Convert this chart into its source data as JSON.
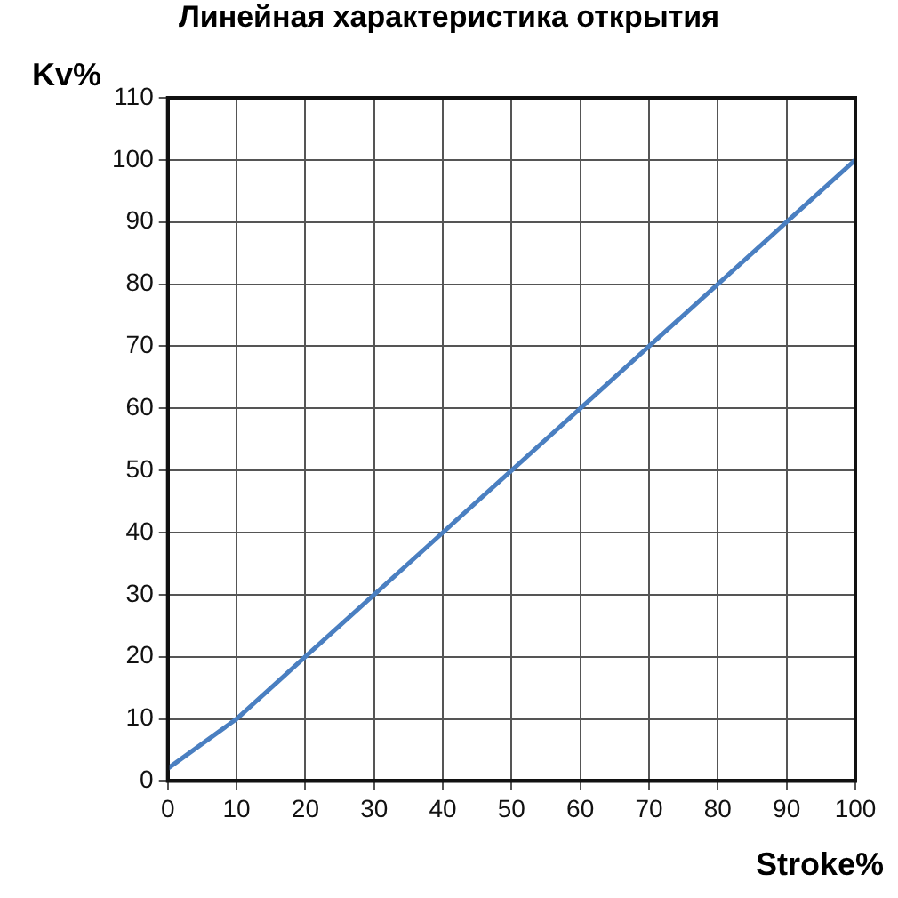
{
  "chart_data": {
    "type": "line",
    "title": "Линейная характеристика открытия",
    "xlabel": "Stroke%",
    "ylabel": "Kv%",
    "x": [
      0,
      10,
      20,
      30,
      40,
      50,
      60,
      70,
      80,
      90,
      100
    ],
    "series": [
      {
        "color": "#4a7fc1",
        "values": [
          2,
          10,
          20,
          30,
          40,
          50,
          60,
          70,
          80,
          90,
          100
        ]
      }
    ],
    "xlim": [
      0,
      100
    ],
    "xticks": [
      0,
      10,
      20,
      30,
      40,
      50,
      60,
      70,
      80,
      90,
      100
    ],
    "ylim": [
      0,
      110
    ],
    "yticks": [
      0,
      10,
      20,
      30,
      40,
      50,
      60,
      70,
      80,
      90,
      100,
      110
    ],
    "grid": true,
    "legend": false,
    "marker": "none",
    "line_style": "solid"
  }
}
